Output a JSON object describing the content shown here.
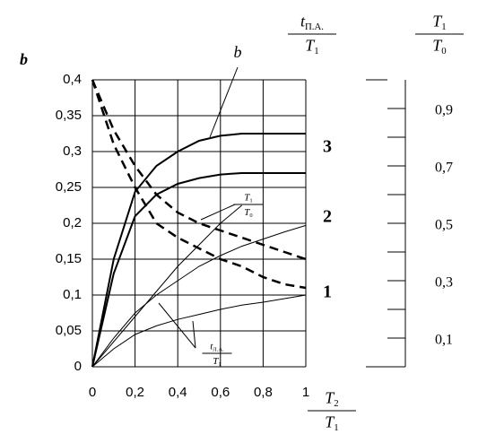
{
  "chart_data": {
    "type": "line",
    "y_label": "b",
    "x_label": {
      "num": "T",
      "num_sub": "2",
      "den": "T",
      "den_sub": "1"
    },
    "header_left": {
      "num": "t",
      "num_sub": "П.А.",
      "den": "T",
      "den_sub": "1"
    },
    "header_right": {
      "num": "T",
      "num_sub": "1",
      "den": "T",
      "den_sub": "0"
    },
    "curve_label_b": "b",
    "curve_label_ratio": {
      "num": "T",
      "num_sub": "1",
      "den": "T",
      "den_sub": "0"
    },
    "curve_label_time": {
      "num": "t",
      "num_sub": "Л.А.",
      "den": "T",
      "den_sub": "1"
    },
    "case_labels": [
      "3",
      "2",
      "1"
    ],
    "x": [
      0,
      0.1,
      0.2,
      0.3,
      0.4,
      0.5,
      0.6,
      0.7,
      0.8,
      0.9,
      1
    ],
    "series": [
      {
        "style": "solid",
        "width": 2,
        "color": "#000",
        "values": [
          0,
          0.15,
          0.244,
          0.28,
          0.3,
          0.315,
          0.322,
          0.325,
          0.325,
          0.325,
          0.325
        ]
      },
      {
        "style": "solid",
        "width": 2,
        "color": "#000",
        "values": [
          0,
          0.13,
          0.21,
          0.24,
          0.255,
          0.263,
          0.268,
          0.27,
          0.27,
          0.27,
          0.27
        ]
      },
      {
        "style": "solid",
        "width": 1,
        "color": "#000",
        "values": [
          0,
          0.035,
          0.07,
          0.105,
          0.14,
          0.17,
          0.2,
          0.225,
          null,
          null,
          null
        ]
      },
      {
        "style": "solid",
        "width": 1,
        "color": "#000",
        "values": [
          0,
          0.04,
          0.075,
          0.1,
          0.12,
          0.14,
          0.155,
          0.168,
          0.178,
          0.188,
          0.197
        ]
      },
      {
        "style": "solid",
        "width": 1,
        "color": "#000",
        "values": [
          0,
          0.025,
          0.045,
          0.057,
          0.066,
          0.073,
          0.08,
          0.086,
          0.09,
          0.095,
          0.1
        ]
      },
      {
        "style": "dashed",
        "width": 2.5,
        "color": "#000",
        "values": [
          0.4,
          0.33,
          0.28,
          0.24,
          0.215,
          0.2,
          0.19,
          0.18,
          0.17,
          0.16,
          0.15
        ]
      },
      {
        "style": "dashed",
        "width": 2.5,
        "color": "#000",
        "values": [
          0.4,
          0.31,
          0.25,
          0.2,
          0.18,
          0.165,
          0.15,
          0.14,
          0.125,
          0.115,
          0.11
        ]
      }
    ],
    "xlim": [
      0,
      1
    ],
    "xticks": [
      0,
      {
        "value": 0.2,
        "label": "0,2"
      },
      {
        "value": 0.4,
        "label": "0,4"
      },
      {
        "value": 0.6,
        "label": "0,6"
      },
      {
        "value": 0.8,
        "label": "0,8"
      },
      1
    ],
    "ylim": [
      0,
      0.4
    ],
    "yticks": [
      0,
      {
        "value": 0.05,
        "label": "0,05"
      },
      {
        "value": 0.1,
        "label": "0,1"
      },
      {
        "value": 0.15,
        "label": "0,15"
      },
      {
        "value": 0.2,
        "label": "0,2"
      },
      {
        "value": 0.25,
        "label": "0,25"
      },
      {
        "value": 0.3,
        "label": "0,3"
      },
      {
        "value": 0.35,
        "label": "0,35"
      },
      {
        "value": 0.4,
        "label": "0,4"
      }
    ],
    "y2lim": [
      0,
      1
    ],
    "y2ticks": [
      {
        "value": 0.1,
        "label": "0,1"
      },
      {
        "value": 0.3,
        "label": "0,3"
      },
      {
        "value": 0.5,
        "label": "0,5"
      },
      {
        "value": 0.7,
        "label": "0,7"
      },
      {
        "value": 0.9,
        "label": "0,9"
      }
    ],
    "y2minorticks": [
      0.2,
      0.4,
      0.6,
      0.8
    ],
    "grid": true
  }
}
